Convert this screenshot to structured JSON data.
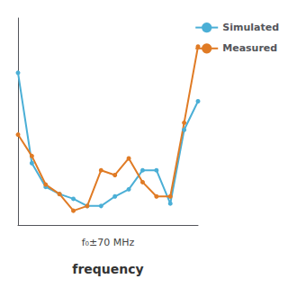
{
  "chart_data": {
    "type": "line",
    "xlabel": "frequency",
    "annotations": [
      "f₀±70 MHz"
    ],
    "x": [
      0,
      1,
      2,
      3,
      4,
      5,
      6,
      7,
      8,
      9,
      10,
      11,
      12,
      13
    ],
    "series": [
      {
        "name": "Simulated",
        "color": "#4bafd6",
        "values": [
          0.82,
          0.44,
          0.34,
          0.31,
          0.29,
          0.26,
          0.26,
          0.3,
          0.33,
          0.41,
          0.41,
          0.27,
          0.58,
          0.7
        ]
      },
      {
        "name": "Measured",
        "color": "#e07b25",
        "values": [
          0.56,
          0.47,
          0.35,
          0.31,
          0.24,
          0.26,
          0.41,
          0.39,
          0.46,
          0.36,
          0.3,
          0.3,
          0.61,
          0.93
        ]
      }
    ],
    "xlim": [
      0,
      13
    ],
    "ylim": [
      0.18,
      1.05
    ],
    "xticks": [],
    "yticks": [],
    "grid": false,
    "legend": "upper right",
    "tick_labels": false,
    "marker": "circle"
  }
}
